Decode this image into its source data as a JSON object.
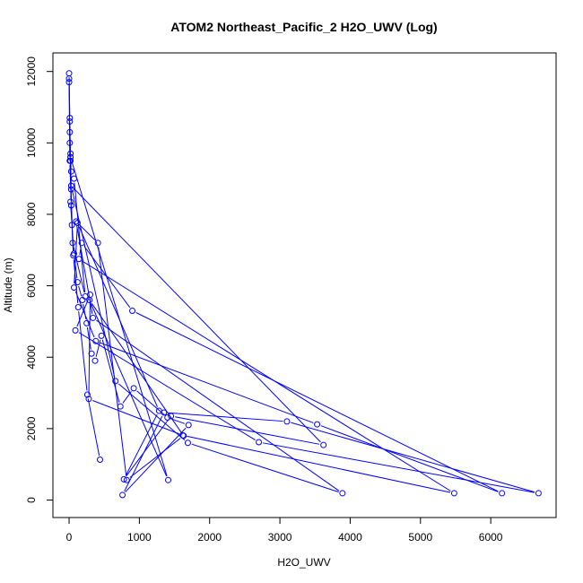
{
  "chart_data": {
    "type": "line",
    "title": "ATOM2 Northeast_Pacific_2 H2O_UWV (Log)",
    "xlabel": "H2O_UWV",
    "ylabel": "Altitude (m)",
    "xlim": [
      -230,
      6930
    ],
    "ylim": [
      -490,
      12520
    ],
    "xticks": [
      0,
      1000,
      2000,
      3000,
      4000,
      5000,
      6000
    ],
    "xtick_labels": [
      "0",
      "1000",
      "2000",
      "3000",
      "4000",
      "5000",
      "6000"
    ],
    "yticks": [
      0,
      2000,
      4000,
      6000,
      8000,
      10000,
      12000
    ],
    "ytick_labels": [
      "0",
      "2000",
      "4000",
      "6000",
      "8000",
      "10000",
      "12000"
    ],
    "grid": false,
    "marker": "open-circle",
    "series": [
      {
        "color": "#0000ff",
        "x": [
          440,
          260,
          130,
          60,
          30,
          10,
          0,
          0,
          10,
          10,
          20,
          30,
          20,
          40,
          70,
          120,
          190,
          250,
          320,
          370,
          460,
          730,
          920,
          1400,
          1700,
          760,
          1350,
          3100,
          6680,
          2700,
          90,
          300,
          280,
          1620,
          5480,
          140,
          180,
          900,
          6160,
          3530,
          380,
          70,
          120,
          1280,
          780,
          1450,
          3620,
          30,
          660,
          1690,
          3890,
          340,
          100,
          410,
          820,
          1630,
          290,
          1410,
          20,
          10,
          50,
          230,
          70,
          30,
          20,
          20,
          10,
          0
        ],
        "y": [
          1130,
          2950,
          5400,
          6850,
          8250,
          9500,
          11700,
          11800,
          10600,
          10300,
          9700,
          8700,
          8350,
          7700,
          6900,
          6100,
          5600,
          4950,
          4100,
          3900,
          4600,
          2620,
          3130,
          2310,
          2100,
          140,
          2450,
          2200,
          190,
          1620,
          4750,
          5750,
          2830,
          1810,
          190,
          6750,
          7200,
          5300,
          190,
          2120,
          4450,
          5950,
          7760,
          2500,
          580,
          2350,
          1540,
          8800,
          3330,
          1600,
          190,
          5100,
          7800,
          7200,
          560,
          1800,
          5600,
          560,
          9600,
          10000,
          7200,
          5700,
          9000,
          9200,
          9600,
          9500,
          10700,
          11950
        ]
      }
    ]
  }
}
